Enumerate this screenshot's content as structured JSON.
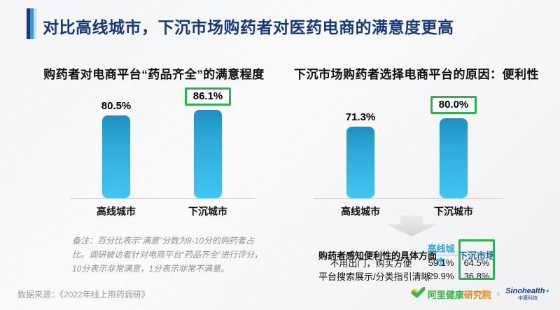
{
  "header": {
    "title": "对比高线城市，下沉市场购药者对医药电商的满意度更高"
  },
  "chart_data": [
    {
      "type": "bar",
      "title": "购药者对电商平台“药品齐全”的满意程度",
      "categories": [
        "高线城市",
        "下沉城市"
      ],
      "values": [
        80.5,
        86.1
      ],
      "value_labels": [
        "80.5%",
        "86.1%"
      ],
      "highlight_index": 1,
      "ylim": [
        0,
        100
      ],
      "legend": "none",
      "grid": false
    },
    {
      "type": "bar",
      "title": "下沉市场购药者选择电商平台的原因：便利性",
      "categories": [
        "高线城市",
        "下沉城市"
      ],
      "values": [
        71.3,
        80.0
      ],
      "value_labels": [
        "71.3%",
        "80.0%"
      ],
      "highlight_index": 1,
      "ylim": [
        0,
        100
      ],
      "legend": "none",
      "grid": false
    },
    {
      "type": "table",
      "header": [
        "购药者感知便利性的具体方面",
        "高线城市",
        "下沉市场"
      ],
      "rows": [
        {
          "label": "不用出门，购买方便",
          "values": [
            "59.1%",
            "64.5%"
          ]
        },
        {
          "label": "平台搜索展示/分类指引清晰",
          "values": [
            "29.9%",
            "36.8%"
          ]
        }
      ],
      "highlight_column": "下沉市场"
    }
  ],
  "note": {
    "text": "备注：百分比表示“满意”分数为8-10分的购药者占比。调研被访者针对电商平台“药品齐全”进行评分，10分表示非常满意，1分表示非常不满意。"
  },
  "footer": {
    "source": "数据来源：《2022年线上用药调研》",
    "ali_logo_green": "阿里健康",
    "ali_logo_orange": "研究院",
    "separator": "×",
    "sino_name": "Sinohealth",
    "sino_star": "✦",
    "sino_sub": "中康科技"
  },
  "colors": {
    "title_navy": "#16387a",
    "bar_gradient_top": "#1e8fc2",
    "bar_gradient_bottom": "#41c6f2",
    "highlight_green": "#2cb34d",
    "table_col_high_tier": "#29a7e1",
    "table_col_sinking": "#1668ad",
    "ali_green": "#3cb548",
    "ali_orange": "#f08519",
    "sino_blue": "#1e3c8c"
  }
}
